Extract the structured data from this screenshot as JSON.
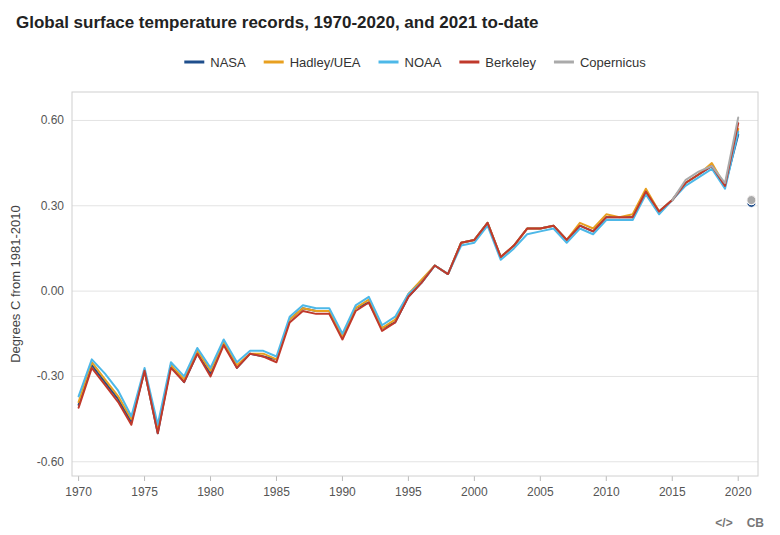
{
  "chart_data": {
    "type": "line",
    "title": "Global surface temperature records, 1970-2020, and 2021 to-date",
    "ylabel": "Degrees C from 1981-2010",
    "x": [
      1970,
      1971,
      1972,
      1973,
      1974,
      1975,
      1976,
      1977,
      1978,
      1979,
      1980,
      1981,
      1982,
      1983,
      1984,
      1985,
      1986,
      1987,
      1988,
      1989,
      1990,
      1991,
      1992,
      1993,
      1994,
      1995,
      1996,
      1997,
      1998,
      1999,
      2000,
      2001,
      2002,
      2003,
      2004,
      2005,
      2006,
      2007,
      2008,
      2009,
      2010,
      2011,
      2012,
      2013,
      2014,
      2015,
      2016,
      2017,
      2018,
      2019,
      2020,
      2021
    ],
    "xlim": [
      1969.5,
      2021.5
    ],
    "xticks": [
      1970,
      1975,
      1980,
      1985,
      1990,
      1995,
      2000,
      2005,
      2010,
      2015,
      2020
    ],
    "ylim": [
      -0.65,
      0.7
    ],
    "yticks": [
      {
        "value": -0.6,
        "label": "-0.60"
      },
      {
        "value": -0.3,
        "label": "-0.30"
      },
      {
        "value": 0,
        "label": "0.00"
      },
      {
        "value": 0.3,
        "label": "0.30"
      },
      {
        "value": 0.6,
        "label": "0.60"
      }
    ],
    "grid": "y",
    "legend": "top",
    "annotations": [
      "CB",
      "</>"
    ],
    "series": [
      {
        "name": "NASA",
        "type": "line",
        "color": "#1f4e8c",
        "values": [
          -0.4,
          -0.26,
          -0.32,
          -0.38,
          -0.46,
          -0.28,
          -0.5,
          -0.26,
          -0.32,
          -0.22,
          -0.29,
          -0.18,
          -0.27,
          -0.22,
          -0.23,
          -0.24,
          -0.1,
          -0.06,
          -0.07,
          -0.07,
          -0.16,
          -0.06,
          -0.04,
          -0.13,
          -0.11,
          -0.02,
          0.03,
          0.09,
          0.06,
          0.17,
          0.18,
          0.24,
          0.12,
          0.16,
          0.22,
          0.22,
          0.23,
          0.18,
          0.23,
          0.21,
          0.26,
          0.26,
          0.26,
          0.35,
          0.28,
          0.32,
          0.38,
          0.41,
          0.44,
          0.37,
          0.55,
          null
        ]
      },
      {
        "name": "Hadley/UEA",
        "type": "line",
        "color": "#e8a020",
        "values": [
          -0.39,
          -0.25,
          -0.31,
          -0.37,
          -0.45,
          -0.28,
          -0.49,
          -0.26,
          -0.31,
          -0.21,
          -0.28,
          -0.18,
          -0.26,
          -0.22,
          -0.22,
          -0.24,
          -0.1,
          -0.06,
          -0.07,
          -0.07,
          -0.16,
          -0.06,
          -0.03,
          -0.13,
          -0.1,
          -0.01,
          0.04,
          0.09,
          0.06,
          0.17,
          0.18,
          0.24,
          0.12,
          0.16,
          0.22,
          0.22,
          0.23,
          0.18,
          0.24,
          0.22,
          0.27,
          0.26,
          0.27,
          0.36,
          0.28,
          0.32,
          0.38,
          0.41,
          0.45,
          0.37,
          0.57,
          null
        ]
      },
      {
        "name": "NOAA",
        "type": "line",
        "color": "#4db8e8",
        "values": [
          -0.37,
          -0.24,
          -0.29,
          -0.35,
          -0.44,
          -0.27,
          -0.47,
          -0.25,
          -0.3,
          -0.2,
          -0.27,
          -0.17,
          -0.25,
          -0.21,
          -0.21,
          -0.23,
          -0.09,
          -0.05,
          -0.06,
          -0.06,
          -0.15,
          -0.05,
          -0.02,
          -0.12,
          -0.09,
          -0.01,
          0.03,
          0.09,
          0.06,
          0.16,
          0.17,
          0.23,
          0.11,
          0.15,
          0.2,
          0.21,
          0.22,
          0.17,
          0.22,
          0.2,
          0.25,
          0.25,
          0.25,
          0.34,
          0.27,
          0.32,
          0.37,
          0.4,
          0.43,
          0.36,
          0.56,
          null
        ]
      },
      {
        "name": "Berkeley",
        "type": "line",
        "color": "#c0392b",
        "values": [
          -0.41,
          -0.27,
          -0.33,
          -0.39,
          -0.47,
          -0.28,
          -0.5,
          -0.27,
          -0.32,
          -0.22,
          -0.3,
          -0.19,
          -0.27,
          -0.22,
          -0.23,
          -0.25,
          -0.11,
          -0.07,
          -0.08,
          -0.08,
          -0.17,
          -0.07,
          -0.04,
          -0.14,
          -0.11,
          -0.02,
          0.03,
          0.09,
          0.06,
          0.17,
          0.18,
          0.24,
          0.12,
          0.16,
          0.22,
          0.22,
          0.23,
          0.18,
          0.23,
          0.21,
          0.26,
          0.26,
          0.26,
          0.35,
          0.28,
          0.32,
          0.38,
          0.41,
          0.44,
          0.37,
          0.59,
          null
        ]
      },
      {
        "name": "Copernicus",
        "type": "line",
        "color": "#aaaaaa",
        "values": [
          null,
          null,
          null,
          null,
          null,
          null,
          null,
          null,
          null,
          null,
          null,
          null,
          null,
          null,
          null,
          null,
          null,
          null,
          null,
          null,
          null,
          null,
          null,
          null,
          null,
          null,
          null,
          null,
          null,
          null,
          null,
          null,
          null,
          null,
          null,
          null,
          null,
          null,
          null,
          null,
          null,
          null,
          null,
          null,
          null,
          0.32,
          0.39,
          0.42,
          0.44,
          0.38,
          0.61,
          null
        ]
      },
      {
        "name": "NASA",
        "type": "scatter",
        "marker": "circle",
        "color": "#1f4e8c",
        "values": [
          null,
          null,
          null,
          null,
          null,
          null,
          null,
          null,
          null,
          null,
          null,
          null,
          null,
          null,
          null,
          null,
          null,
          null,
          null,
          null,
          null,
          null,
          null,
          null,
          null,
          null,
          null,
          null,
          null,
          null,
          null,
          null,
          null,
          null,
          null,
          null,
          null,
          null,
          null,
          null,
          null,
          null,
          null,
          null,
          null,
          null,
          null,
          null,
          null,
          null,
          null,
          0.31
        ]
      },
      {
        "name": "Hadley/UEA",
        "type": "scatter",
        "marker": "circle",
        "color": "#e8a020",
        "values": [
          null,
          null,
          null,
          null,
          null,
          null,
          null,
          null,
          null,
          null,
          null,
          null,
          null,
          null,
          null,
          null,
          null,
          null,
          null,
          null,
          null,
          null,
          null,
          null,
          null,
          null,
          null,
          null,
          null,
          null,
          null,
          null,
          null,
          null,
          null,
          null,
          null,
          null,
          null,
          null,
          null,
          null,
          null,
          null,
          null,
          null,
          null,
          null,
          null,
          null,
          null,
          0.32
        ]
      },
      {
        "name": "NOAA",
        "type": "scatter",
        "marker": "circle",
        "color": "#4db8e8",
        "values": [
          null,
          null,
          null,
          null,
          null,
          null,
          null,
          null,
          null,
          null,
          null,
          null,
          null,
          null,
          null,
          null,
          null,
          null,
          null,
          null,
          null,
          null,
          null,
          null,
          null,
          null,
          null,
          null,
          null,
          null,
          null,
          null,
          null,
          null,
          null,
          null,
          null,
          null,
          null,
          null,
          null,
          null,
          null,
          null,
          null,
          null,
          null,
          null,
          null,
          null,
          null,
          0.32
        ]
      },
      {
        "name": "Berkeley",
        "type": "scatter",
        "marker": "circle",
        "color": "#c0392b",
        "values": [
          null,
          null,
          null,
          null,
          null,
          null,
          null,
          null,
          null,
          null,
          null,
          null,
          null,
          null,
          null,
          null,
          null,
          null,
          null,
          null,
          null,
          null,
          null,
          null,
          null,
          null,
          null,
          null,
          null,
          null,
          null,
          null,
          null,
          null,
          null,
          null,
          null,
          null,
          null,
          null,
          null,
          null,
          null,
          null,
          null,
          null,
          null,
          null,
          null,
          null,
          null,
          0.32
        ]
      },
      {
        "name": "Copernicus",
        "type": "scatter",
        "marker": "circle",
        "color": "#aaaaaa",
        "values": [
          null,
          null,
          null,
          null,
          null,
          null,
          null,
          null,
          null,
          null,
          null,
          null,
          null,
          null,
          null,
          null,
          null,
          null,
          null,
          null,
          null,
          null,
          null,
          null,
          null,
          null,
          null,
          null,
          null,
          null,
          null,
          null,
          null,
          null,
          null,
          null,
          null,
          null,
          null,
          null,
          null,
          null,
          null,
          null,
          null,
          null,
          null,
          null,
          null,
          null,
          null,
          0.32
        ]
      }
    ]
  }
}
